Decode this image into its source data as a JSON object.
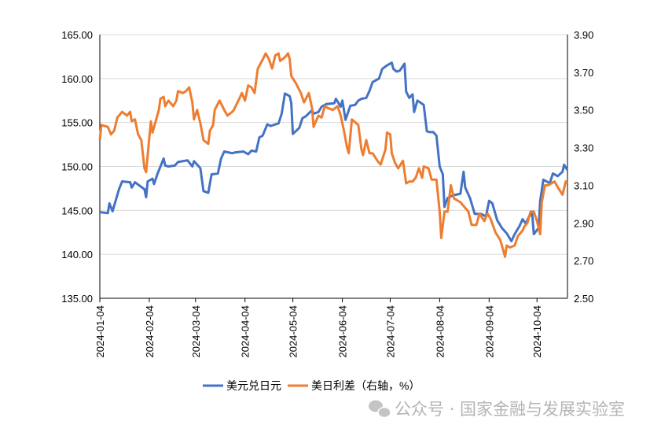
{
  "chart_data": {
    "type": "line",
    "title": "",
    "x_unit": "days since 2024-01-04",
    "x_tick_labels": [
      "2024-01-04",
      "2024-02-04",
      "2024-03-04",
      "2024-04-04",
      "2024-05-04",
      "2024-06-04",
      "2024-07-04",
      "2024-08-04",
      "2024-09-04",
      "2024-10-04"
    ],
    "x_tick_days": [
      0,
      31,
      60,
      91,
      121,
      152,
      182,
      213,
      244,
      274
    ],
    "xlim": [
      0,
      293
    ],
    "y_left": {
      "ylim": [
        135,
        165
      ],
      "ticks": [
        "135.00",
        "140.00",
        "145.00",
        "150.00",
        "155.00",
        "160.00",
        "165.00"
      ]
    },
    "y_right": {
      "ylim": [
        2.5,
        3.9
      ],
      "ticks": [
        "2.50",
        "2.70",
        "2.90",
        "3.10",
        "3.30",
        "3.50",
        "3.70",
        "3.90"
      ]
    },
    "grid": true,
    "legend_position": "bottom",
    "series": [
      {
        "name": "美元兑日元",
        "axis": "left",
        "color": "#4472C4",
        "points": [
          [
            0,
            144.8
          ],
          [
            5,
            144.7
          ],
          [
            6,
            145.8
          ],
          [
            8,
            144.9
          ],
          [
            12,
            147.4
          ],
          [
            14,
            148.3
          ],
          [
            19,
            148.2
          ],
          [
            20,
            147.6
          ],
          [
            22,
            148.2
          ],
          [
            28,
            147.4
          ],
          [
            29,
            146.5
          ],
          [
            30,
            148.3
          ],
          [
            33,
            148.6
          ],
          [
            34,
            148.0
          ],
          [
            36,
            149.1
          ],
          [
            40,
            150.9
          ],
          [
            41,
            150.1
          ],
          [
            43,
            150.0
          ],
          [
            47,
            150.1
          ],
          [
            49,
            150.5
          ],
          [
            55,
            150.7
          ],
          [
            58,
            150.0
          ],
          [
            59,
            150.6
          ],
          [
            63,
            149.8
          ],
          [
            65,
            147.2
          ],
          [
            68,
            147.0
          ],
          [
            70,
            149.1
          ],
          [
            74,
            149.2
          ],
          [
            76,
            150.9
          ],
          [
            78,
            151.7
          ],
          [
            83,
            151.5
          ],
          [
            85,
            151.6
          ],
          [
            90,
            151.7
          ],
          [
            93,
            151.4
          ],
          [
            95,
            151.8
          ],
          [
            98,
            151.7
          ],
          [
            100,
            153.3
          ],
          [
            102,
            153.5
          ],
          [
            105,
            154.8
          ],
          [
            107,
            154.6
          ],
          [
            112,
            154.9
          ],
          [
            114,
            156.0
          ],
          [
            116,
            158.3
          ],
          [
            119,
            158.0
          ],
          [
            120,
            157.2
          ],
          [
            121,
            153.7
          ],
          [
            125,
            154.4
          ],
          [
            127,
            155.5
          ],
          [
            129,
            155.7
          ],
          [
            133,
            156.4
          ],
          [
            134,
            156.0
          ],
          [
            137,
            156.2
          ],
          [
            139,
            156.8
          ],
          [
            142,
            157.1
          ],
          [
            147,
            157.2
          ],
          [
            148,
            157.7
          ],
          [
            151,
            156.8
          ],
          [
            152,
            157.5
          ],
          [
            154,
            155.3
          ],
          [
            157,
            156.9
          ],
          [
            160,
            157.0
          ],
          [
            162,
            157.5
          ],
          [
            164,
            157.7
          ],
          [
            167,
            157.8
          ],
          [
            169,
            158.6
          ],
          [
            171,
            159.6
          ],
          [
            175,
            160.0
          ],
          [
            177,
            161.1
          ],
          [
            180,
            161.5
          ],
          [
            183,
            161.8
          ],
          [
            184,
            161.1
          ],
          [
            186,
            160.8
          ],
          [
            188,
            160.9
          ],
          [
            191,
            161.7
          ],
          [
            192,
            158.5
          ],
          [
            194,
            157.8
          ],
          [
            196,
            158.2
          ],
          [
            197,
            156.2
          ],
          [
            199,
            157.5
          ],
          [
            203,
            157.0
          ],
          [
            205,
            154.0
          ],
          [
            207,
            153.9
          ],
          [
            209,
            153.9
          ],
          [
            211,
            153.5
          ],
          [
            213,
            150.0
          ],
          [
            215,
            149.1
          ],
          [
            216,
            145.4
          ],
          [
            218,
            146.4
          ],
          [
            221,
            146.7
          ],
          [
            226,
            146.9
          ],
          [
            228,
            149.4
          ],
          [
            229,
            147.6
          ],
          [
            232,
            146.4
          ],
          [
            235,
            144.6
          ],
          [
            239,
            144.6
          ],
          [
            242,
            144.3
          ],
          [
            244,
            146.1
          ],
          [
            246,
            145.8
          ],
          [
            249,
            143.9
          ],
          [
            252,
            143.0
          ],
          [
            255,
            142.4
          ],
          [
            258,
            141.5
          ],
          [
            260,
            142.3
          ],
          [
            263,
            143.2
          ],
          [
            265,
            144.0
          ],
          [
            267,
            143.5
          ],
          [
            269,
            144.3
          ],
          [
            271,
            144.6
          ],
          [
            272,
            142.3
          ],
          [
            275,
            143.0
          ],
          [
            276,
            146.1
          ],
          [
            278,
            148.5
          ],
          [
            282,
            148.1
          ],
          [
            284,
            149.2
          ],
          [
            287,
            148.9
          ],
          [
            290,
            149.4
          ],
          [
            291,
            150.2
          ],
          [
            293,
            149.6
          ]
        ]
      },
      {
        "name": "美日利差（右轴，%）",
        "axis": "right",
        "color": "#ED7D31",
        "points": [
          [
            0,
            3.34
          ],
          [
            1,
            3.42
          ],
          [
            5,
            3.41
          ],
          [
            7,
            3.37
          ],
          [
            9,
            3.39
          ],
          [
            11,
            3.46
          ],
          [
            14,
            3.49
          ],
          [
            17,
            3.47
          ],
          [
            19,
            3.49
          ],
          [
            20,
            3.44
          ],
          [
            22,
            3.45
          ],
          [
            24,
            3.37
          ],
          [
            26,
            3.34
          ],
          [
            28,
            3.19
          ],
          [
            29,
            3.17
          ],
          [
            31,
            3.35
          ],
          [
            32,
            3.44
          ],
          [
            33,
            3.38
          ],
          [
            35,
            3.44
          ],
          [
            37,
            3.5
          ],
          [
            38,
            3.56
          ],
          [
            40,
            3.57
          ],
          [
            41,
            3.52
          ],
          [
            43,
            3.55
          ],
          [
            46,
            3.52
          ],
          [
            48,
            3.55
          ],
          [
            49,
            3.6
          ],
          [
            52,
            3.59
          ],
          [
            54,
            3.6
          ],
          [
            56,
            3.62
          ],
          [
            58,
            3.54
          ],
          [
            59,
            3.45
          ],
          [
            61,
            3.5
          ],
          [
            63,
            3.43
          ],
          [
            65,
            3.34
          ],
          [
            68,
            3.32
          ],
          [
            69,
            3.39
          ],
          [
            71,
            3.42
          ],
          [
            72,
            3.5
          ],
          [
            75,
            3.55
          ],
          [
            78,
            3.5
          ],
          [
            80,
            3.47
          ],
          [
            83,
            3.49
          ],
          [
            84,
            3.5
          ],
          [
            88,
            3.57
          ],
          [
            89,
            3.59
          ],
          [
            91,
            3.55
          ],
          [
            93,
            3.63
          ],
          [
            95,
            3.62
          ],
          [
            97,
            3.59
          ],
          [
            99,
            3.72
          ],
          [
            101,
            3.75
          ],
          [
            104,
            3.8
          ],
          [
            106,
            3.77
          ],
          [
            108,
            3.72
          ],
          [
            110,
            3.79
          ],
          [
            112,
            3.8
          ],
          [
            113,
            3.76
          ],
          [
            116,
            3.78
          ],
          [
            118,
            3.8
          ],
          [
            119,
            3.77
          ],
          [
            120,
            3.68
          ],
          [
            123,
            3.64
          ],
          [
            126,
            3.59
          ],
          [
            128,
            3.54
          ],
          [
            131,
            3.59
          ],
          [
            133,
            3.51
          ],
          [
            134,
            3.41
          ],
          [
            137,
            3.47
          ],
          [
            139,
            3.46
          ],
          [
            141,
            3.52
          ],
          [
            143,
            3.51
          ],
          [
            146,
            3.5
          ],
          [
            149,
            3.52
          ],
          [
            151,
            3.47
          ],
          [
            153,
            3.39
          ],
          [
            155,
            3.3
          ],
          [
            156,
            3.27
          ],
          [
            158,
            3.45
          ],
          [
            162,
            3.42
          ],
          [
            164,
            3.29
          ],
          [
            165,
            3.26
          ],
          [
            167,
            3.34
          ],
          [
            169,
            3.27
          ],
          [
            171,
            3.27
          ],
          [
            174,
            3.23
          ],
          [
            176,
            3.21
          ],
          [
            179,
            3.29
          ],
          [
            180,
            3.38
          ],
          [
            182,
            3.37
          ],
          [
            183,
            3.27
          ],
          [
            185,
            3.22
          ],
          [
            187,
            3.19
          ],
          [
            190,
            3.23
          ],
          [
            192,
            3.11
          ],
          [
            194,
            3.12
          ],
          [
            196,
            3.12
          ],
          [
            198,
            3.14
          ],
          [
            200,
            3.19
          ],
          [
            202,
            3.14
          ],
          [
            203,
            3.2
          ],
          [
            206,
            3.19
          ],
          [
            208,
            3.13
          ],
          [
            211,
            3.13
          ],
          [
            213,
            2.96
          ],
          [
            214,
            2.82
          ],
          [
            216,
            2.96
          ],
          [
            218,
            2.96
          ],
          [
            220,
            3.1
          ],
          [
            222,
            3.03
          ],
          [
            226,
            3.01
          ],
          [
            228,
            2.99
          ],
          [
            231,
            2.96
          ],
          [
            233,
            2.89
          ],
          [
            236,
            2.89
          ],
          [
            238,
            2.95
          ],
          [
            241,
            2.91
          ],
          [
            243,
            2.95
          ],
          [
            245,
            2.92
          ],
          [
            248,
            2.85
          ],
          [
            251,
            2.81
          ],
          [
            254,
            2.72
          ],
          [
            255,
            2.78
          ],
          [
            257,
            2.77
          ],
          [
            260,
            2.78
          ],
          [
            262,
            2.83
          ],
          [
            265,
            2.86
          ],
          [
            266,
            2.88
          ],
          [
            268,
            2.9
          ],
          [
            270,
            2.96
          ],
          [
            272,
            2.96
          ],
          [
            274,
            2.91
          ],
          [
            276,
            2.84
          ],
          [
            277,
            3.01
          ],
          [
            279,
            3.1
          ],
          [
            281,
            3.1
          ],
          [
            285,
            3.12
          ],
          [
            287,
            3.09
          ],
          [
            290,
            3.05
          ],
          [
            292,
            3.12
          ],
          [
            293,
            3.11
          ]
        ]
      }
    ]
  },
  "legend": {
    "items": [
      "美元兑日元",
      "美日利差（右轴，%）"
    ]
  },
  "watermark": {
    "text": "公众号 · 国家金融与发展实验室"
  }
}
